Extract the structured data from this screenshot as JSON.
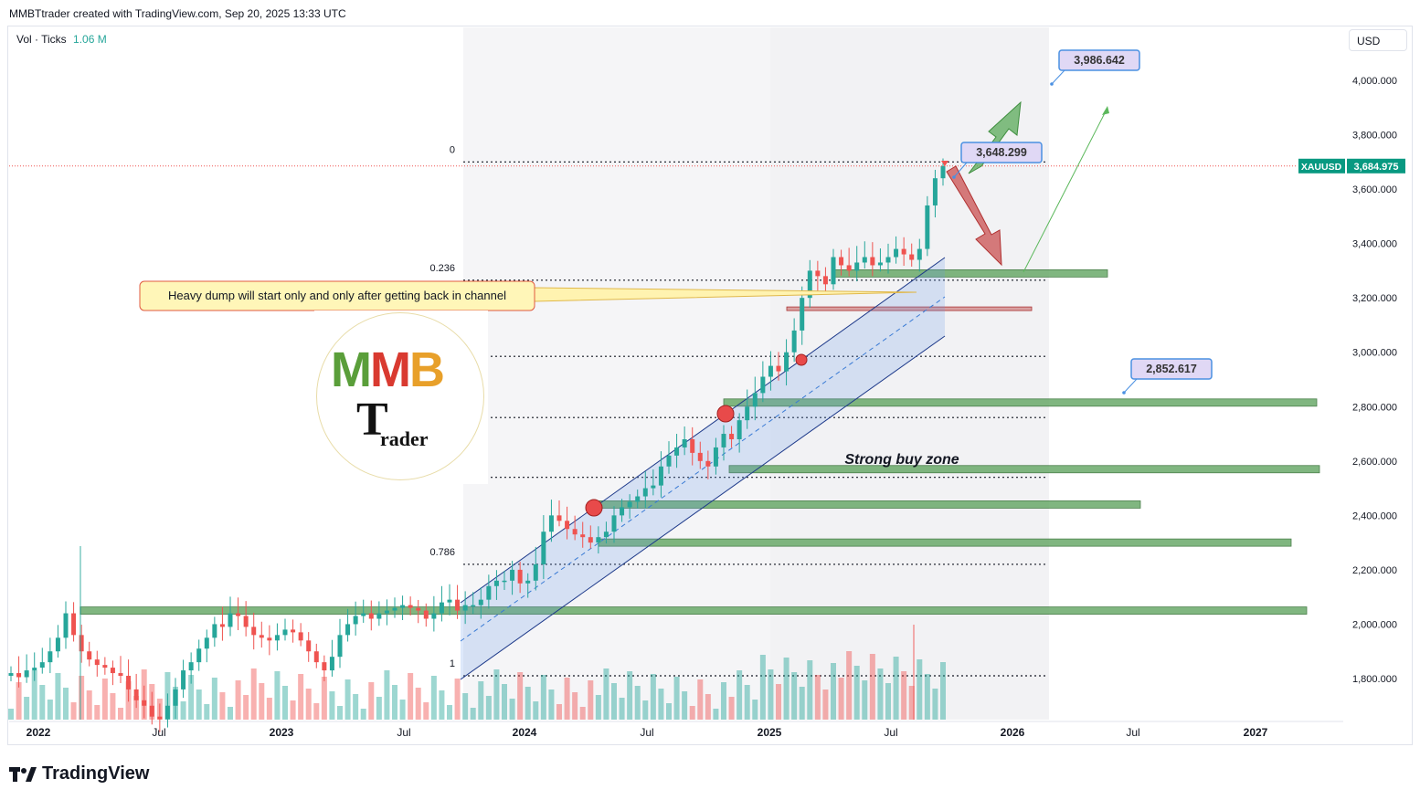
{
  "header": {
    "credit": "MMBTtrader created with TradingView.com, Sep 20, 2025 13:33 UTC"
  },
  "volume": {
    "label": "Vol · Ticks",
    "value": "1.06 M"
  },
  "currency_button": "USD",
  "footer": {
    "brand": "TradingView"
  },
  "colors": {
    "up": "#26a69a",
    "down": "#ef5350",
    "channel": "#1e3a8a",
    "zone": "#6aaa6a",
    "fib": "#131722"
  },
  "annotations": {
    "note": "Heavy dump will start only and only after getting back in channel",
    "zone_label": "Strong buy zone",
    "target_high": "3,986.642",
    "target_mid": "3,648.299",
    "target_low": "2,852.617"
  },
  "logo": {
    "text": "MMB Trader"
  },
  "chart_data": {
    "type": "candlestick",
    "symbol": "XAUUSD",
    "last_price": "3,684.975",
    "x_ticks": [
      "2022",
      "Jul",
      "2023",
      "Jul",
      "2024",
      "Jul",
      "2025",
      "Jul",
      "2026",
      "Jul",
      "2027"
    ],
    "y_ticks": [
      "4,000.000",
      "3,800.000",
      "3,600.000",
      "3,400.000",
      "3,200.000",
      "3,000.000",
      "2,800.000",
      "2,600.000",
      "2,400.000",
      "2,200.000",
      "2,000.000",
      "1,800.000"
    ],
    "ylim": [
      1650,
      4150
    ],
    "fib_levels": [
      {
        "label": "0",
        "price": 3700
      },
      {
        "label": "0.236",
        "price": 3265
      },
      {
        "label": "",
        "price": 2985
      },
      {
        "label": "",
        "price": 2760
      },
      {
        "label": "",
        "price": 2540
      },
      {
        "label": "0.786",
        "price": 2220
      },
      {
        "label": "1",
        "price": 1810
      }
    ],
    "support_zones": [
      2050,
      2300,
      2440,
      2570,
      2815,
      3290
    ],
    "resistance_line": 3160,
    "series_close": [
      1820,
      1805,
      1830,
      1840,
      1860,
      1900,
      1950,
      2040,
      1960,
      1900,
      1870,
      1850,
      1840,
      1820,
      1810,
      1760,
      1720,
      1700,
      1660,
      1650,
      1700,
      1760,
      1830,
      1860,
      1910,
      1950,
      2000,
      1990,
      2040,
      2030,
      1990,
      1960,
      1950,
      1940,
      1960,
      1980,
      1970,
      1940,
      1900,
      1860,
      1830,
      1880,
      1960,
      2000,
      2030,
      2040,
      2020,
      2040,
      2050,
      2060,
      2070,
      2060,
      2050,
      2020,
      2040,
      2080,
      2090,
      2050,
      2070,
      2070,
      2090,
      2140,
      2160,
      2160,
      2200,
      2150,
      2160,
      2220,
      2340,
      2400,
      2380,
      2350,
      2330,
      2320,
      2300,
      2320,
      2340,
      2400,
      2430,
      2450,
      2470,
      2500,
      2510,
      2580,
      2620,
      2650,
      2680,
      2630,
      2600,
      2580,
      2650,
      2700,
      2680,
      2750,
      2800,
      2850,
      2910,
      2950,
      2930,
      3000,
      3080,
      3200,
      3300,
      3280,
      3250,
      3350,
      3320,
      3300,
      3330,
      3350,
      3320,
      3330,
      3350,
      3380,
      3360,
      3340,
      3380,
      3540,
      3640,
      3685
    ]
  }
}
